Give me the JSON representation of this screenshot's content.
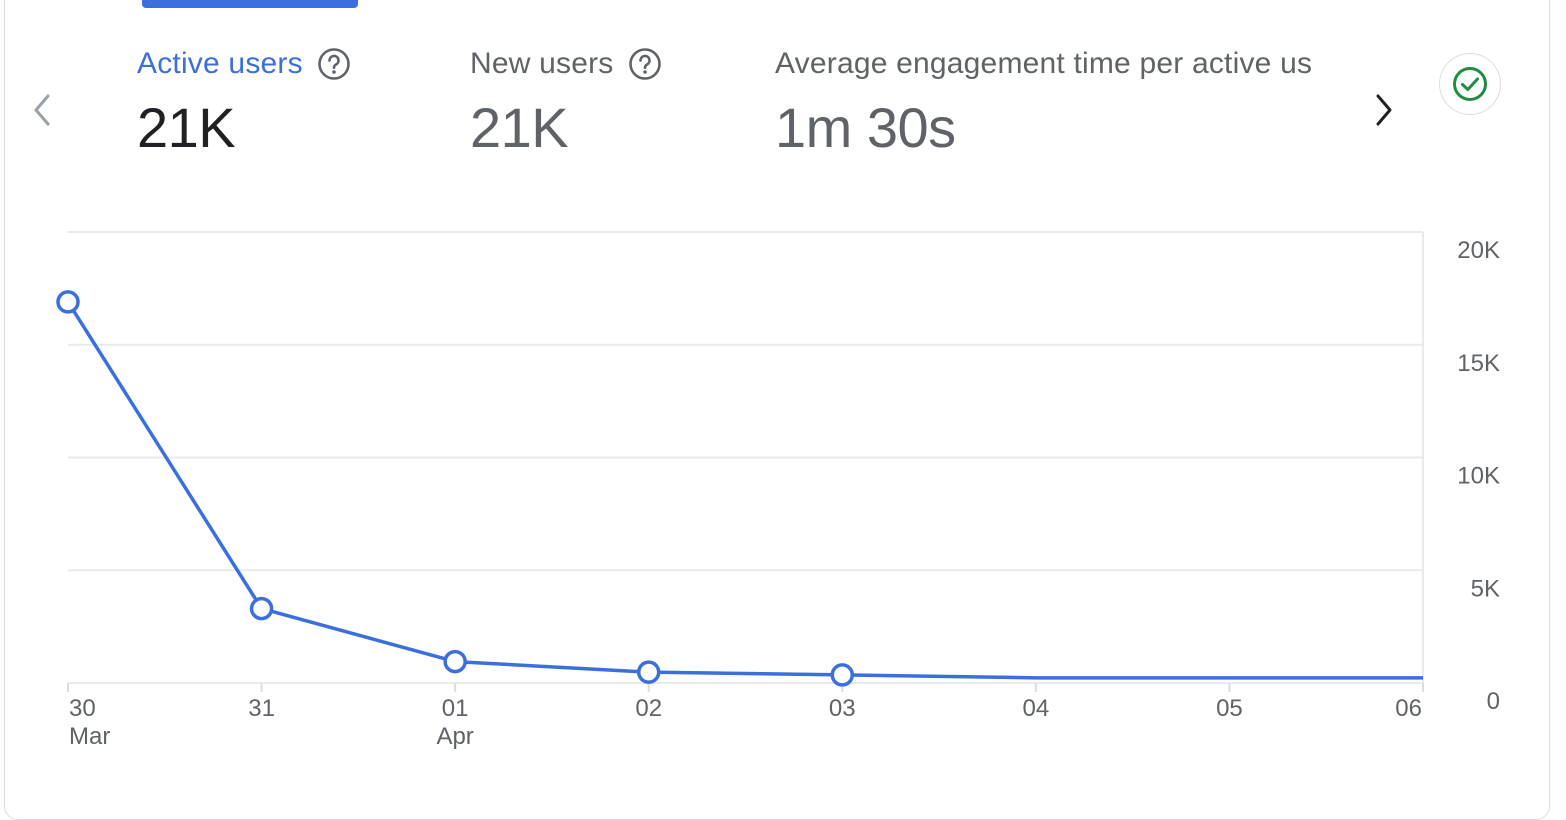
{
  "nav": {
    "prev_icon": "chevron-left-icon",
    "next_icon": "chevron-right-icon"
  },
  "metrics": [
    {
      "label": "Active users",
      "value": "21K",
      "selected": true,
      "help_icon": "help-circle-icon"
    },
    {
      "label": "New users",
      "value": "21K",
      "selected": false,
      "help_icon": "help-circle-icon"
    },
    {
      "label": "Average engagement time per active us",
      "value": "1m 30s",
      "selected": false
    }
  ],
  "status": {
    "icon": "check-circle-icon",
    "color": "#1e8e3e"
  },
  "colors": {
    "accent": "#3b6fde",
    "text": "#202124",
    "muted": "#5f6368",
    "grid": "#e8eaed"
  },
  "chart_data": {
    "type": "line",
    "x": [
      "30",
      "31",
      "01",
      "02",
      "03",
      "04",
      "05",
      "06"
    ],
    "x_sublabels": [
      "Mar",
      "",
      "Apr",
      "",
      "",
      "",
      "",
      ""
    ],
    "series": [
      {
        "values": [
          16900,
          3300,
          950,
          480,
          360,
          230,
          230,
          230
        ],
        "markers": [
          true,
          true,
          true,
          true,
          true,
          false,
          false,
          false
        ]
      }
    ],
    "y_ticks": [
      "0",
      "5K",
      "10K",
      "15K",
      "20K"
    ],
    "y_tick_values": [
      0,
      5000,
      10000,
      15000,
      20000
    ],
    "ylim": [
      0,
      20000
    ],
    "y_axis_position": "right",
    "grid": true
  }
}
